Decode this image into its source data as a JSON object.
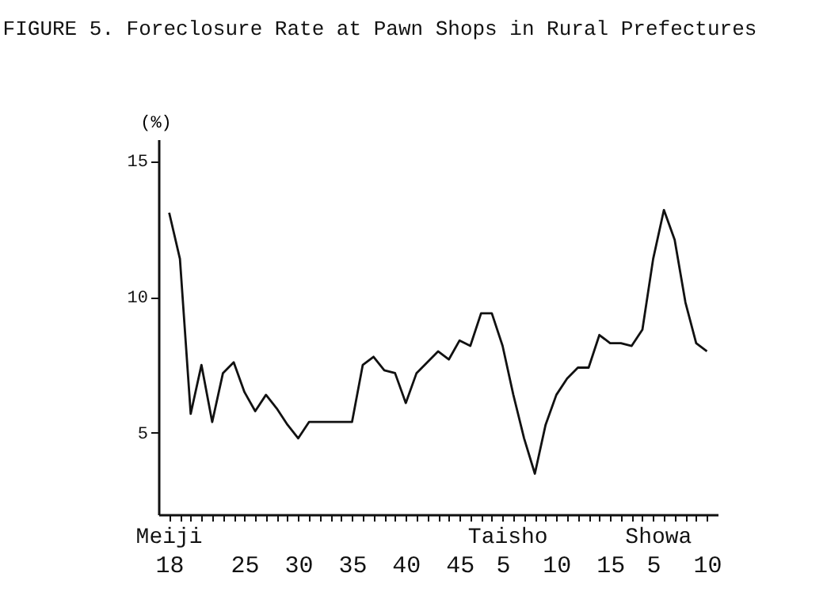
{
  "chart_data": {
    "type": "line",
    "title": "FIGURE 5.  Foreclosure Rate at Pawn Shops in Rural Prefectures",
    "ylabel": "(%)",
    "annotations": [
      "Meiji",
      "Taisho",
      "Showa"
    ],
    "categories": [
      "18",
      null,
      null,
      null,
      null,
      null,
      null,
      "25",
      null,
      null,
      null,
      null,
      "30",
      null,
      null,
      null,
      null,
      "35",
      null,
      null,
      null,
      null,
      "40",
      null,
      null,
      null,
      null,
      "45",
      null,
      null,
      null,
      "5",
      null,
      null,
      null,
      null,
      "10",
      null,
      null,
      null,
      null,
      "15",
      null,
      null,
      null,
      "5",
      null,
      null,
      null,
      null,
      "10"
    ],
    "series": [
      {
        "color": "#111111",
        "values": [
          13.1,
          11.4,
          5.7,
          7.5,
          5.4,
          7.2,
          7.6,
          6.5,
          5.8,
          6.4,
          5.9,
          5.3,
          4.8,
          5.4,
          5.4,
          5.4,
          5.4,
          5.4,
          7.5,
          7.8,
          7.3,
          7.2,
          6.1,
          7.2,
          7.6,
          8.0,
          7.7,
          8.4,
          8.2,
          9.4,
          9.4,
          8.2,
          6.4,
          4.8,
          3.5,
          5.3,
          6.4,
          7.0,
          7.4,
          7.4,
          8.6,
          8.3,
          8.3,
          8.2,
          8.8,
          11.4,
          13.2,
          12.1,
          9.8,
          8.3,
          8.0
        ]
      }
    ],
    "ylim": [
      2,
      15.8
    ],
    "yticks": [
      5,
      10,
      15
    ],
    "grid": false,
    "marker": "none",
    "line_style": "solid"
  }
}
